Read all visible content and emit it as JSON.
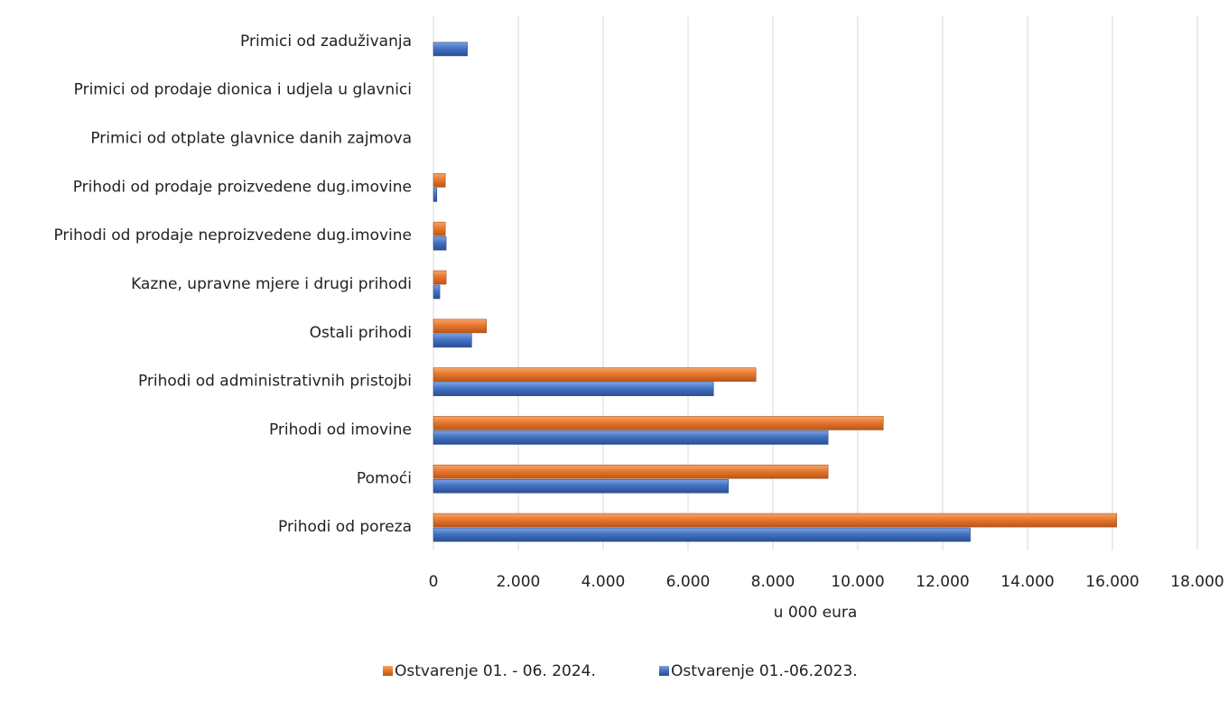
{
  "chart_data": {
    "type": "bar",
    "orientation": "horizontal",
    "categories": [
      "Prihodi od poreza",
      "Pomoći",
      "Prihodi od imovine",
      "Prihodi od administrativnih pristojbi",
      "Ostali prihodi",
      "Kazne, upravne mjere i drugi prihodi",
      "Prihodi od prodaje neproizvedene dug.imovine",
      "Prihodi od prodaje proizvedene dug.imovine",
      "Primici od otplate glavnice danih zajmova",
      "Primici od prodaje dionica i udjela u glavnici",
      "Primici od zaduživanja"
    ],
    "series": [
      {
        "name": "Ostvarenje 01. - 06. 2024.",
        "color": "#e8772e",
        "values": [
          16100,
          9300,
          10600,
          7600,
          1250,
          300,
          280,
          280,
          0,
          0,
          0
        ]
      },
      {
        "name": "Ostvarenje 01.-06.2023.",
        "color": "#4472c4",
        "values": [
          12650,
          6950,
          9300,
          6600,
          900,
          150,
          300,
          80,
          0,
          0,
          800
        ]
      }
    ],
    "xlabel": "u 000 eura",
    "ylabel": "",
    "xlim": [
      0,
      18000
    ],
    "xticks": [
      0,
      2000,
      4000,
      6000,
      8000,
      10000,
      12000,
      14000,
      16000,
      18000
    ],
    "xtick_labels": [
      "0",
      "2.000",
      "4.000",
      "6.000",
      "8.000",
      "10.000",
      "12.000",
      "14.000",
      "16.000",
      "18.000"
    ],
    "grid": "vertical",
    "legend_position": "bottom"
  }
}
